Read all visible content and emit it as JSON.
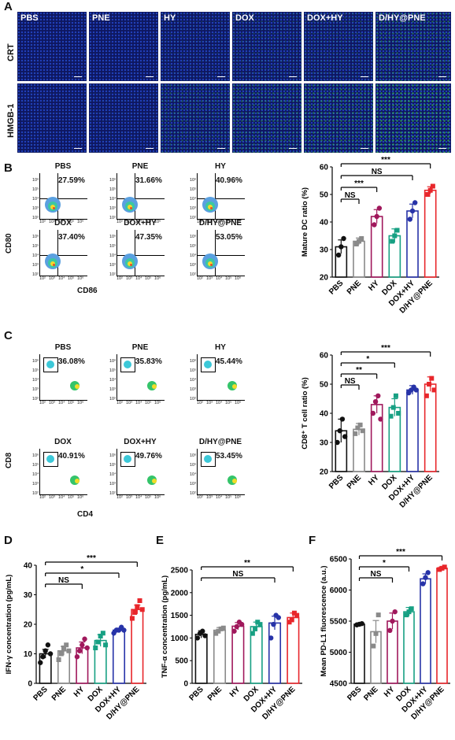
{
  "panels": {
    "A": "A",
    "B": "B",
    "C": "C",
    "D": "D",
    "E": "E",
    "F": "F"
  },
  "panel_a": {
    "columns": [
      "PBS",
      "PNE",
      "HY",
      "DOX",
      "DOX+HY",
      "D/HY@PNE"
    ],
    "rows": [
      "CRT",
      "HMGB-1"
    ],
    "green_intensity": {
      "CRT": [
        0.03,
        0.03,
        0.12,
        0.2,
        0.22,
        0.42
      ],
      "HMGB-1": [
        0.05,
        0.07,
        0.32,
        0.42,
        0.5,
        0.66
      ]
    }
  },
  "panel_b": {
    "titles": [
      "PBS",
      "PNE",
      "HY",
      "DOX",
      "DOX+HY",
      "D/HY@PNE"
    ],
    "percents": [
      "27.59%",
      "31.66%",
      "40.96%",
      "37.40%",
      "47.35%",
      "53.05%"
    ],
    "y_axis": "CD80",
    "x_axis": "CD86",
    "tick_labels": [
      "10²",
      "10³",
      "10⁴",
      "10⁵",
      "10⁶"
    ]
  },
  "panel_c": {
    "titles": [
      "PBS",
      "PNE",
      "HY",
      "DOX",
      "DOX+HY",
      "D/HY@PNE"
    ],
    "percents": [
      "36.08%",
      "35.83%",
      "45.44%",
      "40.91%",
      "49.76%",
      "53.45%"
    ],
    "y_axis": "CD8",
    "x_axis": "CD4",
    "tick_labels": [
      "10²",
      "10³",
      "10⁴",
      "10⁵",
      "10⁶"
    ]
  },
  "colors": {
    "PBS": "#111111",
    "PNE": "#8a8a8a",
    "HY": "#a0185c",
    "DOX": "#17a083",
    "DOX+HY": "#2733a8",
    "D/HY@PNE": "#e8262b"
  },
  "chart_data": [
    {
      "id": "B",
      "type": "bar",
      "categories": [
        "PBS",
        "PNE",
        "HY",
        "DOX",
        "DOX+HY",
        "D/HY@PNE"
      ],
      "values": [
        31,
        33,
        42,
        35,
        44,
        51.5
      ],
      "errors": [
        2.5,
        1.2,
        2.5,
        2.5,
        2.5,
        1.3
      ],
      "points": [
        [
          28,
          31,
          34
        ],
        [
          32,
          33,
          34
        ],
        [
          39,
          42,
          45
        ],
        [
          33,
          35,
          37
        ],
        [
          41,
          44,
          47
        ],
        [
          50,
          51.5,
          53
        ]
      ],
      "ylabel": "Mature DC ratio (%)",
      "ylim": [
        20,
        60
      ],
      "yticks": [
        20,
        30,
        40,
        50,
        60
      ],
      "sig": [
        {
          "label": "***",
          "from": 0,
          "to": 5
        },
        {
          "label": "NS",
          "from": 0,
          "to": 4
        },
        {
          "label": "***",
          "from": 0,
          "to": 2
        },
        {
          "label": "NS",
          "from": 0,
          "to": 1
        }
      ]
    },
    {
      "id": "C",
      "type": "bar",
      "categories": [
        "PBS",
        "PNE",
        "HY",
        "DOX",
        "DOX+HY",
        "D/HY@PNE"
      ],
      "values": [
        34,
        34.5,
        43,
        42,
        48,
        50
      ],
      "errors": [
        4,
        2,
        3,
        3,
        1.5,
        2.5
      ],
      "points": [
        [
          30,
          34,
          38,
          32
        ],
        [
          33,
          35,
          36,
          34
        ],
        [
          40,
          44,
          46,
          38
        ],
        [
          39,
          42,
          46,
          40
        ],
        [
          47,
          48,
          49,
          48
        ],
        [
          46,
          50,
          52,
          48
        ]
      ],
      "ylabel": "CD8⁺ T cell ratio (%)",
      "ylim": [
        20,
        60
      ],
      "yticks": [
        20,
        30,
        40,
        50,
        60
      ],
      "sig": [
        {
          "label": "***",
          "from": 0,
          "to": 5
        },
        {
          "label": "*",
          "from": 0,
          "to": 3
        },
        {
          "label": "**",
          "from": 0,
          "to": 2
        },
        {
          "label": "NS",
          "from": 0,
          "to": 1
        }
      ]
    },
    {
      "id": "D",
      "type": "bar",
      "categories": [
        "PBS",
        "PNE",
        "HY",
        "DOX",
        "DOX+HY",
        "D/HY@PNE"
      ],
      "values": [
        10,
        11,
        12,
        14.5,
        18,
        25
      ],
      "errors": [
        1.5,
        1.5,
        2,
        2,
        0.7,
        1.5
      ],
      "points": [
        [
          7,
          9,
          11,
          13,
          10
        ],
        [
          8,
          10,
          12,
          13,
          11
        ],
        [
          9,
          11,
          13,
          15,
          12
        ],
        [
          12,
          14,
          16,
          17,
          13
        ],
        [
          17,
          18,
          18,
          19,
          18
        ],
        [
          22,
          24,
          26,
          28,
          25
        ]
      ],
      "ylabel": "IFN-γ concentration (pg/mL)",
      "ylim": [
        0,
        40
      ],
      "yticks": [
        0,
        10,
        20,
        30,
        40
      ],
      "sig": [
        {
          "label": "***",
          "from": 0,
          "to": 5
        },
        {
          "label": "*",
          "from": 0,
          "to": 4
        },
        {
          "label": "NS",
          "from": 0,
          "to": 2
        }
      ]
    },
    {
      "id": "E",
      "type": "bar",
      "categories": [
        "PBS",
        "PNE",
        "HY",
        "DOX",
        "DOX+HY",
        "D/HY@PNE"
      ],
      "values": [
        1080,
        1170,
        1260,
        1250,
        1330,
        1450
      ],
      "errors": [
        80,
        60,
        80,
        100,
        150,
        100
      ],
      "points": [
        [
          1000,
          1100,
          1150,
          1050
        ],
        [
          1100,
          1150,
          1200,
          1220
        ],
        [
          1150,
          1250,
          1350,
          1300
        ],
        [
          1100,
          1200,
          1350,
          1300
        ],
        [
          1000,
          1300,
          1500,
          1450
        ],
        [
          1350,
          1400,
          1550,
          1500
        ]
      ],
      "ylabel": "TNF-α concentration (pg/mL)",
      "ylim": [
        0,
        2500
      ],
      "yticks": [
        0,
        500,
        1000,
        1500,
        2000,
        2500
      ],
      "sig": [
        {
          "label": "**",
          "from": 0,
          "to": 5
        },
        {
          "label": "NS",
          "from": 0,
          "to": 4
        }
      ]
    },
    {
      "id": "F",
      "type": "bar",
      "categories": [
        "PBS",
        "PNE",
        "HY",
        "DOX",
        "DOX+HY",
        "D/HY@PNE"
      ],
      "values": [
        5450,
        5330,
        5500,
        5650,
        6180,
        6350
      ],
      "errors": [
        20,
        180,
        130,
        70,
        80,
        20
      ],
      "points": [
        [
          5440,
          5450,
          5460
        ],
        [
          5100,
          5300,
          5600
        ],
        [
          5350,
          5500,
          5650
        ],
        [
          5600,
          5650,
          5700
        ],
        [
          6100,
          6200,
          6280
        ],
        [
          6330,
          6350,
          6370
        ]
      ],
      "ylabel": "Mean PD-L1 fluorescence (a.u.)",
      "ylim": [
        4500,
        6500
      ],
      "yticks": [
        4500,
        5000,
        5500,
        6000,
        6500
      ],
      "sig": [
        {
          "label": "***",
          "from": 0,
          "to": 5
        },
        {
          "label": "*",
          "from": 0,
          "to": 3
        },
        {
          "label": "NS",
          "from": 0,
          "to": 2
        }
      ]
    }
  ]
}
